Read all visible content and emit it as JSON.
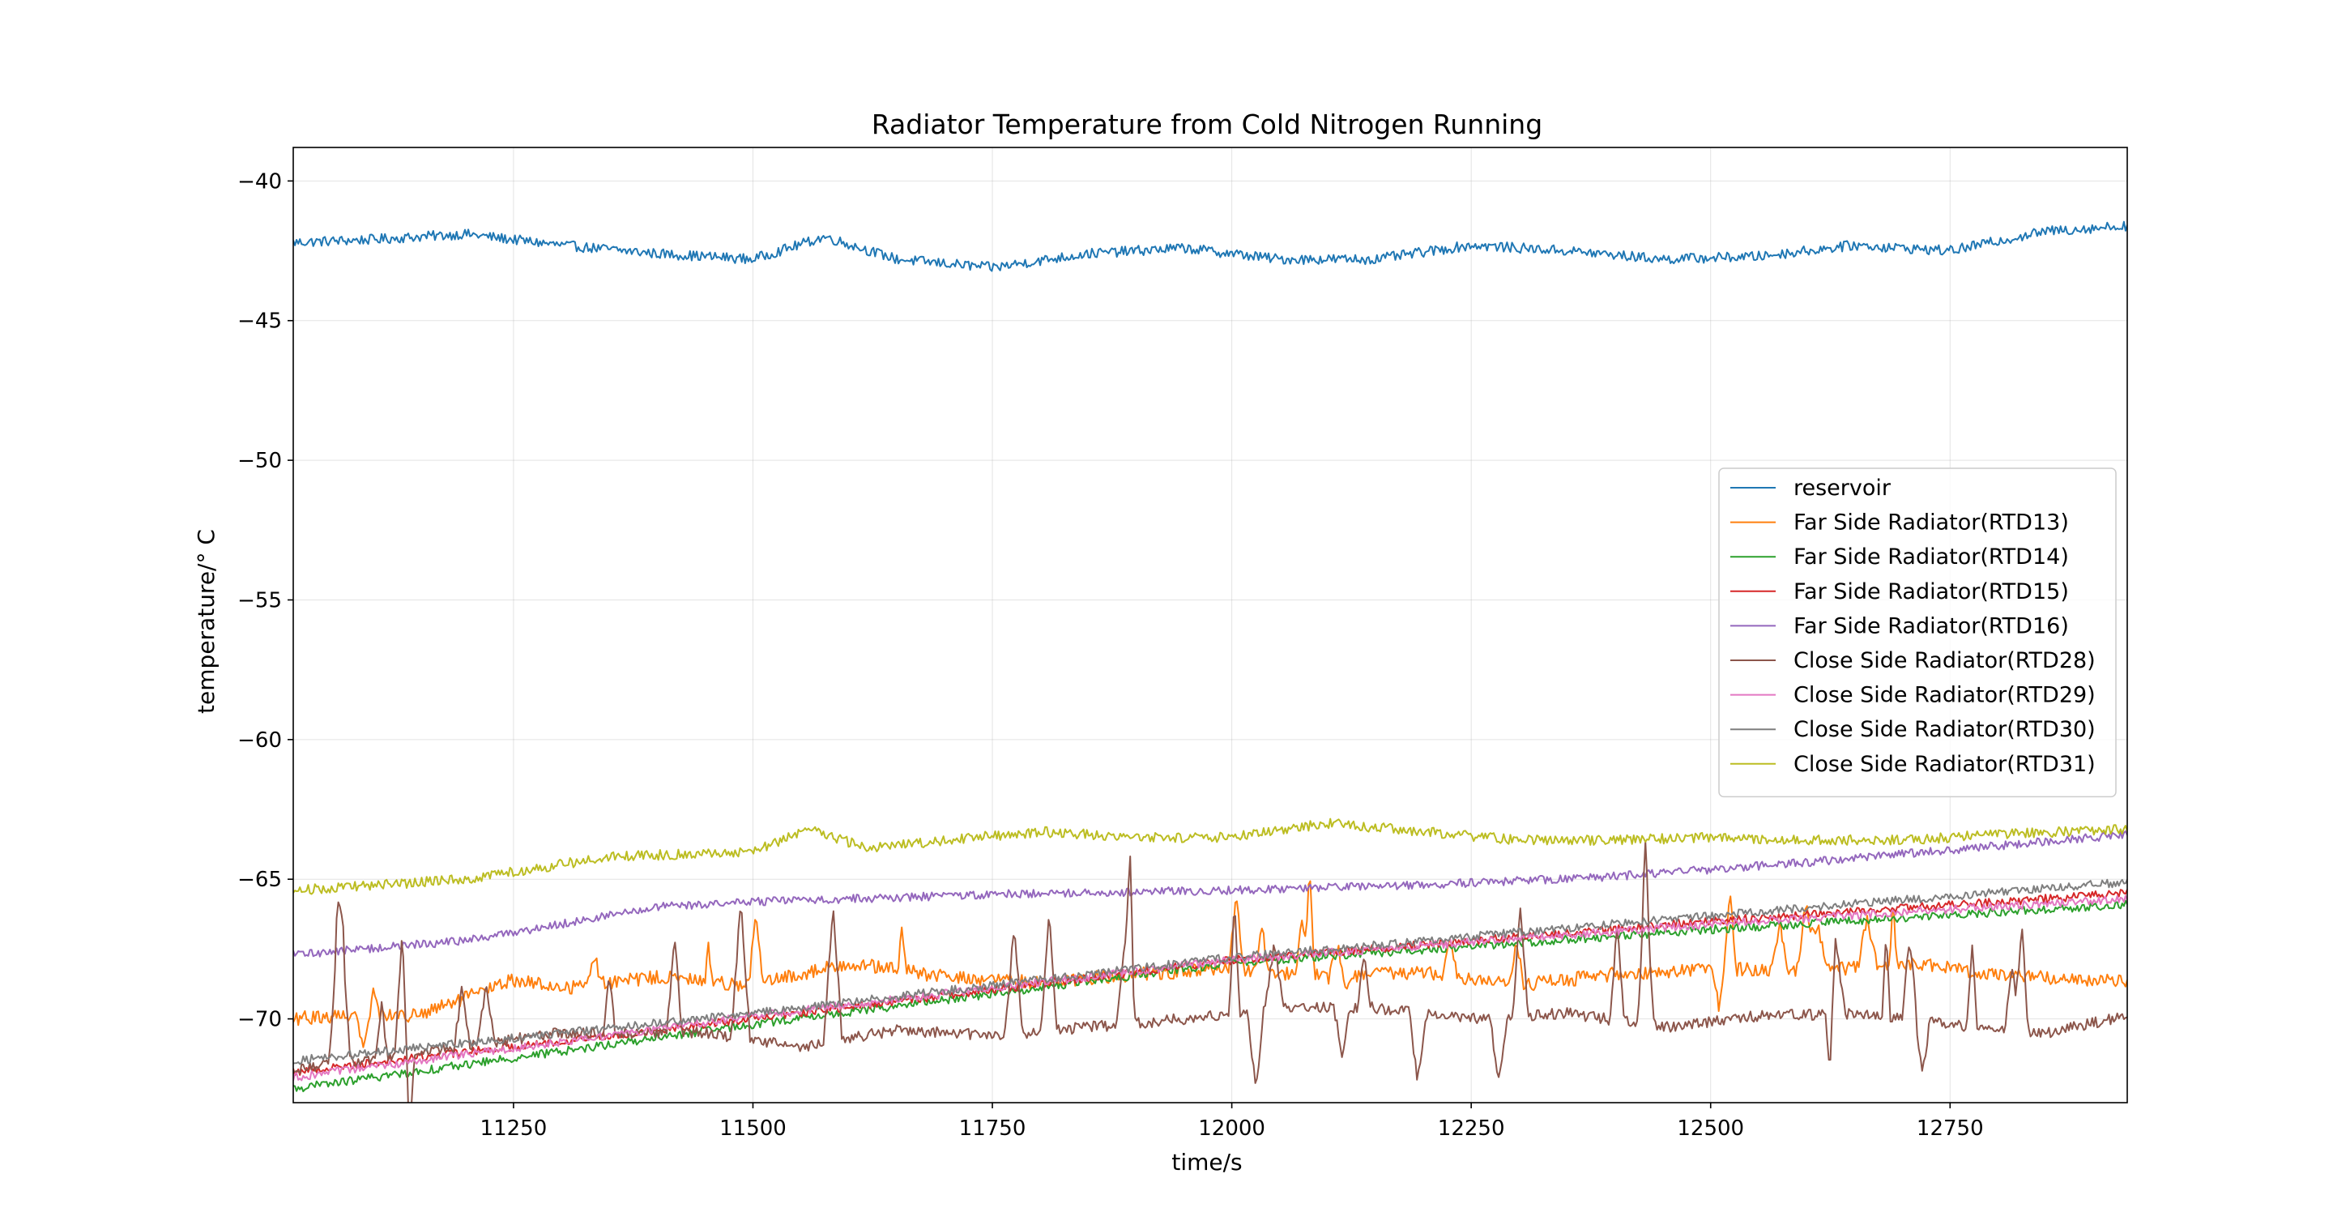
{
  "chart_data": {
    "type": "line",
    "title": "Radiator Temperature from Cold Nitrogen Running",
    "xlabel": "time/s",
    "ylabel": "temperature/° C",
    "xlim": [
      11020,
      12935
    ],
    "ylim": [
      -73,
      -38.8
    ],
    "xticks": [
      11250,
      11500,
      11750,
      12000,
      12250,
      12500,
      12750
    ],
    "yticks": [
      -40,
      -45,
      -50,
      -55,
      -60,
      -65,
      -70
    ],
    "xtick_labels": [
      "11250",
      "11500",
      "11750",
      "12000",
      "12250",
      "12500",
      "12750"
    ],
    "ytick_labels": [
      "−40",
      "−45",
      "−50",
      "−55",
      "−60",
      "−65",
      "−70"
    ],
    "grid": true,
    "legend_position": "center-right",
    "series": [
      {
        "name": "reservoir",
        "color": "#1f77b4",
        "x": [
          11020,
          11100,
          11200,
          11300,
          11400,
          11500,
          11575,
          11650,
          11750,
          11850,
          11950,
          12050,
          12150,
          12250,
          12350,
          12450,
          12550,
          12650,
          12750,
          12850,
          12935
        ],
        "y": [
          -42.2,
          -42.1,
          -41.9,
          -42.3,
          -42.6,
          -42.8,
          -42.0,
          -42.8,
          -43.1,
          -42.6,
          -42.4,
          -42.8,
          -42.8,
          -42.3,
          -42.5,
          -42.8,
          -42.7,
          -42.3,
          -42.5,
          -41.8,
          -41.6
        ],
        "noise": 0.18,
        "spikes": 0
      },
      {
        "name": "Far Side Radiator(RTD13)",
        "color": "#ff7f0e",
        "x": [
          11020,
          11100,
          11150,
          11250,
          11300,
          11400,
          11500,
          11600,
          11700,
          11800,
          11900,
          12000,
          12100,
          12200,
          12300,
          12400,
          12500,
          12600,
          12700,
          12800,
          12935
        ],
        "y": [
          -70.0,
          -69.8,
          -69.9,
          -68.6,
          -68.9,
          -68.5,
          -68.8,
          -68.0,
          -68.5,
          -68.7,
          -68.4,
          -68.2,
          -68.5,
          -68.3,
          -68.8,
          -68.4,
          -68.2,
          -68.3,
          -68.0,
          -68.4,
          -68.7
        ],
        "noise": 0.25,
        "spikes": 22,
        "spike_amp": 1.8
      },
      {
        "name": "Far Side Radiator(RTD14)",
        "color": "#2ca02c",
        "x": [
          11020,
          11500,
          12000,
          12500,
          12935
        ],
        "y": [
          -72.5,
          -70.2,
          -68.0,
          -66.8,
          -65.9
        ],
        "noise": 0.15,
        "spikes": 0
      },
      {
        "name": "Far Side Radiator(RTD15)",
        "color": "#d62728",
        "x": [
          11020,
          11500,
          12000,
          12500,
          12935
        ],
        "y": [
          -71.9,
          -70.0,
          -67.9,
          -66.5,
          -65.5
        ],
        "noise": 0.15,
        "spikes": 0
      },
      {
        "name": "Far Side Radiator(RTD16)",
        "color": "#9467bd",
        "x": [
          11020,
          11200,
          11300,
          11400,
          11500,
          11600,
          11800,
          12000,
          12200,
          12400,
          12600,
          12800,
          12935
        ],
        "y": [
          -67.7,
          -67.2,
          -66.6,
          -66.0,
          -65.8,
          -65.7,
          -65.5,
          -65.4,
          -65.2,
          -64.9,
          -64.4,
          -63.8,
          -63.4
        ],
        "noise": 0.15,
        "spikes": 0
      },
      {
        "name": "Close Side Radiator(RTD28)",
        "color": "#8c564b",
        "x": [
          11020,
          11150,
          11300,
          11450,
          11550,
          11650,
          11750,
          11850,
          11950,
          12050,
          12150,
          12250,
          12350,
          12450,
          12550,
          12650,
          12750,
          12850,
          12935
        ],
        "y": [
          -71.8,
          -71.2,
          -70.5,
          -70.5,
          -71.0,
          -70.4,
          -70.6,
          -70.3,
          -70.0,
          -69.6,
          -69.6,
          -70.0,
          -69.8,
          -70.3,
          -69.9,
          -69.8,
          -70.2,
          -70.5,
          -69.9
        ],
        "noise": 0.2,
        "spikes": 34,
        "spike_amp": 3.5
      },
      {
        "name": "Close Side Radiator(RTD29)",
        "color": "#e377c2",
        "x": [
          11020,
          11500,
          12000,
          12500,
          12935
        ],
        "y": [
          -72.1,
          -69.9,
          -67.9,
          -66.6,
          -65.7
        ],
        "noise": 0.15,
        "spikes": 0
      },
      {
        "name": "Close Side Radiator(RTD30)",
        "color": "#7f7f7f",
        "x": [
          11020,
          11500,
          12000,
          12500,
          12935
        ],
        "y": [
          -71.5,
          -69.8,
          -67.8,
          -66.3,
          -65.1
        ],
        "noise": 0.15,
        "spikes": 0
      },
      {
        "name": "Close Side Radiator(RTD31)",
        "color": "#bcbd22",
        "x": [
          11020,
          11200,
          11350,
          11500,
          11560,
          11620,
          11700,
          11800,
          11900,
          12000,
          12100,
          12200,
          12300,
          12400,
          12500,
          12600,
          12700,
          12800,
          12935
        ],
        "y": [
          -65.4,
          -65.0,
          -64.2,
          -64.0,
          -63.2,
          -63.9,
          -63.6,
          -63.3,
          -63.5,
          -63.5,
          -63.0,
          -63.3,
          -63.6,
          -63.6,
          -63.5,
          -63.6,
          -63.6,
          -63.4,
          -63.2
        ],
        "noise": 0.18,
        "spikes": 0
      }
    ]
  }
}
